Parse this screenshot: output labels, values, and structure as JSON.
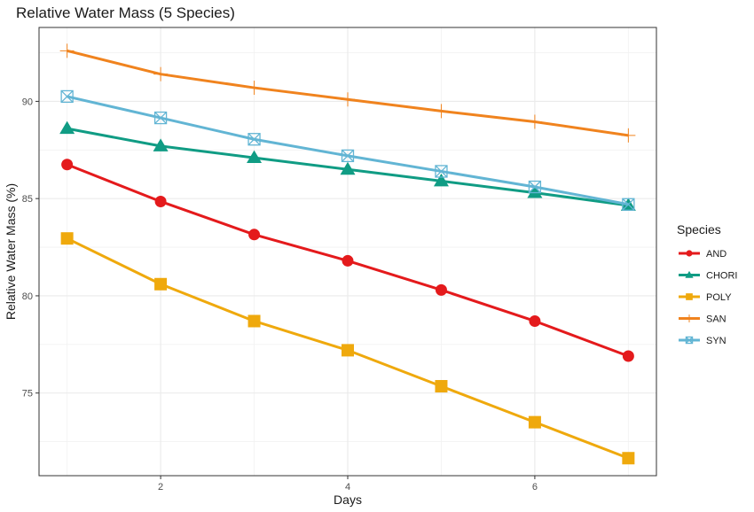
{
  "chart_data": {
    "type": "line",
    "title": "Relative Water Mass (5 Species)",
    "xlabel": "Days",
    "ylabel": "Relative Water Mass (%)",
    "xlim": [
      0.7,
      7.3
    ],
    "ylim": [
      70.75,
      93.8
    ],
    "x_ticks": [
      2,
      4,
      6
    ],
    "y_ticks": [
      75,
      80,
      85,
      90
    ],
    "grid": true,
    "legend_title": "Species",
    "legend_position": "right",
    "x": [
      1,
      2,
      3,
      4,
      5,
      6,
      7
    ],
    "series": [
      {
        "name": "AND",
        "color": "#e41a1c",
        "marker": "circle",
        "values": [
          86.75,
          84.85,
          83.15,
          81.8,
          80.3,
          78.7,
          76.9
        ]
      },
      {
        "name": "CHORI",
        "color": "#109c84",
        "marker": "triangle",
        "values": [
          88.6,
          87.7,
          87.1,
          86.5,
          85.9,
          85.3,
          84.65
        ]
      },
      {
        "name": "POLY",
        "color": "#efa90d",
        "marker": "square",
        "values": [
          82.95,
          80.6,
          78.7,
          77.2,
          75.35,
          73.5,
          71.65
        ]
      },
      {
        "name": "SAN",
        "color": "#f0831e",
        "marker": "plus",
        "values": [
          92.6,
          91.4,
          90.7,
          90.1,
          89.5,
          88.95,
          88.25
        ]
      },
      {
        "name": "SYN",
        "color": "#62b5d4",
        "marker": "square-cross",
        "values": [
          90.25,
          89.15,
          88.05,
          87.2,
          86.4,
          85.6,
          84.7
        ]
      }
    ]
  }
}
